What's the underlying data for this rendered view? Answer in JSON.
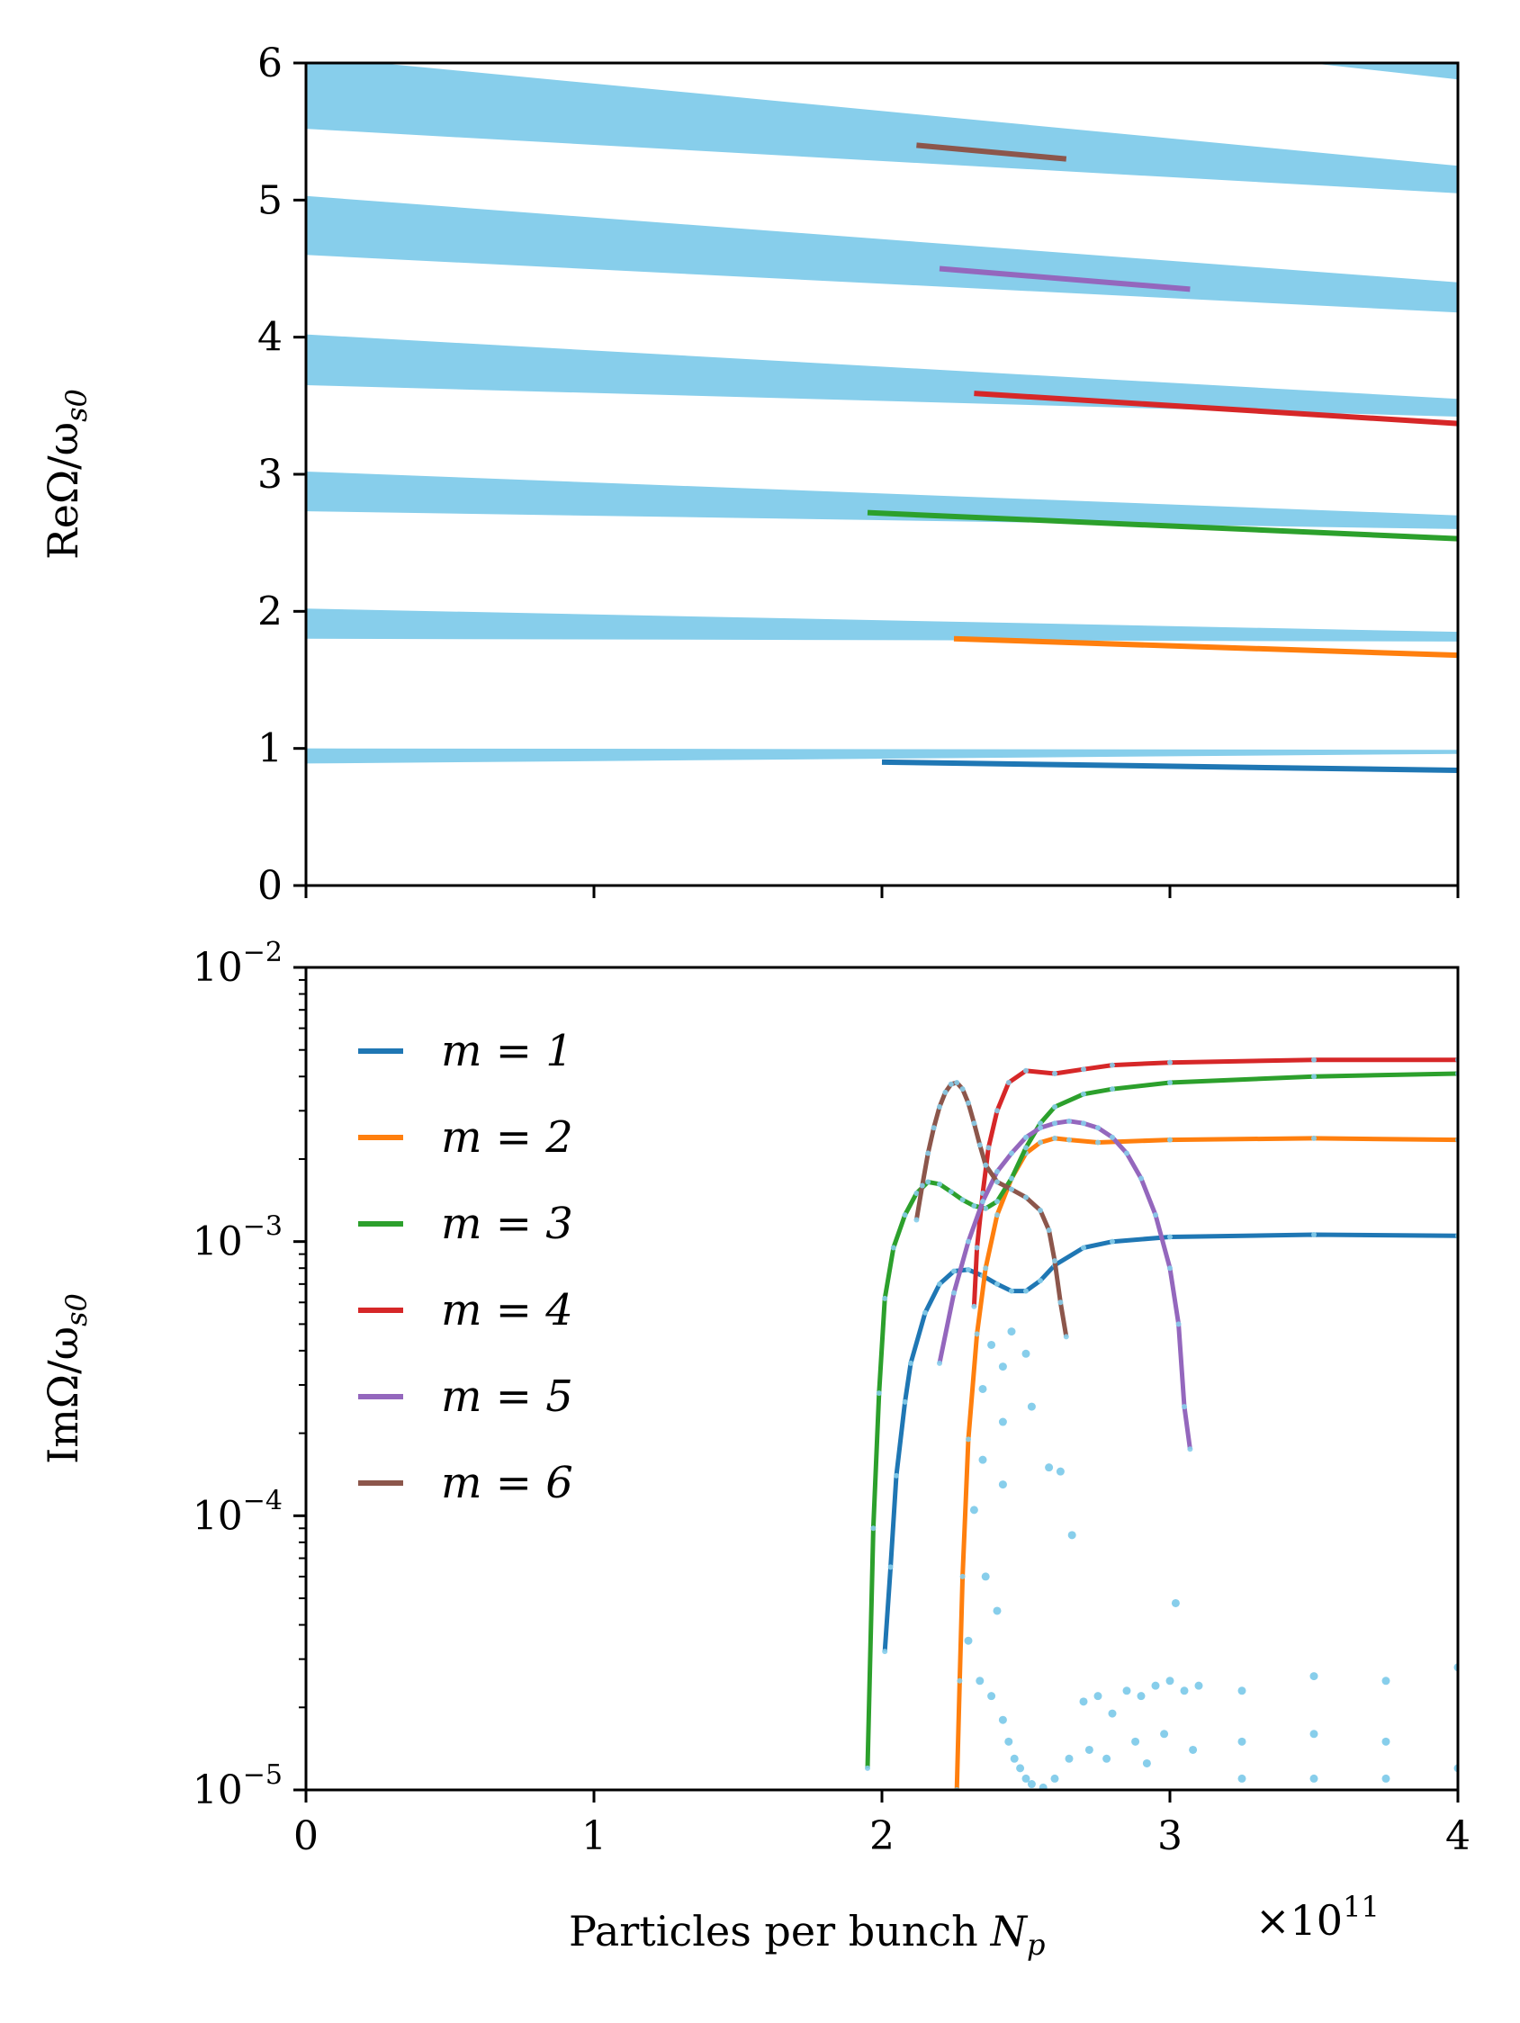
{
  "chart_data": [
    {
      "id": "top",
      "type": "line",
      "ylabel": "ReΩ/ω",
      "ylabel_sub": "s0",
      "xlim": [
        0,
        4
      ],
      "ylim": [
        0,
        6
      ],
      "x_ticks": [
        0,
        1,
        2,
        3,
        4
      ],
      "y_ticks": [
        {
          "value": 0,
          "label": "0"
        },
        {
          "value": 1,
          "label": "1"
        },
        {
          "value": 2,
          "label": "2"
        },
        {
          "value": 3,
          "label": "3"
        },
        {
          "value": 4,
          "label": "4"
        },
        {
          "value": 5,
          "label": "5"
        },
        {
          "value": 6,
          "label": "6"
        }
      ],
      "bands": [
        {
          "x": [
            0,
            4
          ],
          "lower": [
            0.89,
            0.96
          ],
          "upper": [
            1.0,
            0.99
          ]
        },
        {
          "x": [
            0,
            4
          ],
          "lower": [
            1.8,
            1.78
          ],
          "upper": [
            2.02,
            1.85
          ]
        },
        {
          "x": [
            0,
            4
          ],
          "lower": [
            2.73,
            2.6
          ],
          "upper": [
            3.02,
            2.7
          ]
        },
        {
          "x": [
            0,
            4
          ],
          "lower": [
            3.65,
            3.42
          ],
          "upper": [
            4.02,
            3.55
          ]
        },
        {
          "x": [
            0,
            4
          ],
          "lower": [
            4.6,
            4.18
          ],
          "upper": [
            5.03,
            4.4
          ]
        },
        {
          "x": [
            0,
            4
          ],
          "lower": [
            5.52,
            5.05
          ],
          "upper": [
            6.05,
            5.25
          ]
        },
        {
          "x": [
            3.4,
            4
          ],
          "lower": [
            6.02,
            5.88
          ],
          "upper": [
            6.2,
            6.1
          ]
        }
      ],
      "series": [
        {
          "name": "m = 1",
          "x": [
            2.0,
            4.0
          ],
          "y": [
            0.9,
            0.84
          ]
        },
        {
          "name": "m = 2",
          "x": [
            2.25,
            4.0
          ],
          "y": [
            1.8,
            1.68
          ]
        },
        {
          "name": "m = 3",
          "x": [
            1.95,
            4.0
          ],
          "y": [
            2.72,
            2.53
          ]
        },
        {
          "name": "m = 4",
          "x": [
            2.32,
            4.0
          ],
          "y": [
            3.59,
            3.37
          ]
        },
        {
          "name": "m = 5",
          "x": [
            2.2,
            3.07
          ],
          "y": [
            4.5,
            4.35
          ]
        },
        {
          "name": "m = 6",
          "x": [
            2.12,
            2.64
          ],
          "y": [
            5.4,
            5.3
          ]
        }
      ]
    },
    {
      "id": "bottom",
      "type": "line",
      "yscale": "log",
      "xlabel": "Particles per bunch",
      "xlabel_var": "N",
      "xlabel_sub": "p",
      "x_multiplier": "×10",
      "x_multiplier_exp": "11",
      "ylabel": "ImΩ/ω",
      "ylabel_sub": "s0",
      "xlim": [
        0,
        4
      ],
      "ylim": [
        1e-05,
        0.01
      ],
      "x_ticks": [
        {
          "value": 0,
          "label": "0"
        },
        {
          "value": 1,
          "label": "1"
        },
        {
          "value": 2,
          "label": "2"
        },
        {
          "value": 3,
          "label": "3"
        },
        {
          "value": 4,
          "label": "4"
        }
      ],
      "y_ticks": [
        {
          "value": 1e-05,
          "base": "10",
          "exp": "−5"
        },
        {
          "value": 0.0001,
          "base": "10",
          "exp": "−4"
        },
        {
          "value": 0.001,
          "base": "10",
          "exp": "−3"
        },
        {
          "value": 0.01,
          "base": "10",
          "exp": "−2"
        }
      ],
      "legend": {
        "position": "upper-left",
        "entries": [
          "m = 1",
          "m = 2",
          "m = 3",
          "m = 4",
          "m = 5",
          "m = 6"
        ]
      },
      "series": [
        {
          "name": "m = 1",
          "x": [
            2.01,
            2.03,
            2.05,
            2.08,
            2.1,
            2.15,
            2.2,
            2.25,
            2.3,
            2.35,
            2.4,
            2.45,
            2.5,
            2.55,
            2.6,
            2.7,
            2.8,
            3.0,
            3.5,
            4.0
          ],
          "y": [
            3.2e-05,
            6.5e-05,
            0.00014,
            0.00026,
            0.00036,
            0.00055,
            0.0007,
            0.00078,
            0.00079,
            0.00075,
            0.0007,
            0.00066,
            0.00066,
            0.00072,
            0.00082,
            0.00095,
            0.001,
            0.00104,
            0.00106,
            0.00105
          ]
        },
        {
          "name": "m = 2",
          "x": [
            2.26,
            2.27,
            2.28,
            2.3,
            2.33,
            2.36,
            2.4,
            2.45,
            2.5,
            2.55,
            2.6,
            2.65,
            2.75,
            3.0,
            3.5,
            4.0
          ],
          "y": [
            1e-05,
            2.5e-05,
            6e-05,
            0.00019,
            0.00046,
            0.0008,
            0.00125,
            0.0017,
            0.0021,
            0.0023,
            0.00238,
            0.00235,
            0.0023,
            0.00235,
            0.00238,
            0.00235
          ],
          "clip_start": true
        },
        {
          "name": "m = 3",
          "x": [
            1.95,
            1.97,
            1.99,
            2.01,
            2.04,
            2.08,
            2.12,
            2.16,
            2.2,
            2.24,
            2.28,
            2.32,
            2.36,
            2.4,
            2.45,
            2.5,
            2.55,
            2.6,
            2.7,
            2.8,
            3.0,
            3.5,
            4.0
          ],
          "y": [
            1.2e-05,
            9e-05,
            0.00028,
            0.00062,
            0.00095,
            0.00125,
            0.0015,
            0.00165,
            0.00162,
            0.00152,
            0.00142,
            0.00135,
            0.00132,
            0.0014,
            0.0017,
            0.0022,
            0.0027,
            0.0031,
            0.00345,
            0.0036,
            0.0038,
            0.004,
            0.0041
          ]
        },
        {
          "name": "m = 4",
          "x": [
            2.32,
            2.33,
            2.35,
            2.37,
            2.4,
            2.44,
            2.5,
            2.6,
            2.7,
            2.8,
            3.0,
            3.5,
            4.0
          ],
          "y": [
            0.00058,
            0.00095,
            0.0015,
            0.0022,
            0.003,
            0.0038,
            0.0042,
            0.0041,
            0.00425,
            0.0044,
            0.0045,
            0.0046,
            0.0046
          ]
        },
        {
          "name": "m = 5",
          "x": [
            2.2,
            2.25,
            2.3,
            2.35,
            2.4,
            2.45,
            2.5,
            2.55,
            2.6,
            2.65,
            2.7,
            2.75,
            2.8,
            2.85,
            2.9,
            2.95,
            3.0,
            3.03,
            3.05,
            3.07
          ],
          "y": [
            0.00036,
            0.00065,
            0.001,
            0.0014,
            0.0018,
            0.0021,
            0.0024,
            0.0026,
            0.0027,
            0.00275,
            0.0027,
            0.0026,
            0.0024,
            0.0021,
            0.0017,
            0.00125,
            0.0008,
            0.0005,
            0.00025,
            0.000175
          ]
        },
        {
          "name": "m = 6",
          "x": [
            2.12,
            2.14,
            2.16,
            2.18,
            2.2,
            2.22,
            2.24,
            2.26,
            2.28,
            2.3,
            2.32,
            2.34,
            2.36,
            2.4,
            2.45,
            2.5,
            2.55,
            2.58,
            2.6,
            2.62,
            2.64
          ],
          "y": [
            0.0012,
            0.0016,
            0.0021,
            0.0026,
            0.0031,
            0.0035,
            0.00375,
            0.0038,
            0.0036,
            0.0032,
            0.0027,
            0.00225,
            0.0019,
            0.00165,
            0.00155,
            0.00145,
            0.0013,
            0.0011,
            0.00085,
            0.0006,
            0.00045
          ]
        }
      ],
      "scatter": [
        {
          "x": 2.38,
          "y": 0.00042
        },
        {
          "x": 2.42,
          "y": 0.00035
        },
        {
          "x": 2.45,
          "y": 0.00047
        },
        {
          "x": 2.5,
          "y": 0.00039
        },
        {
          "x": 2.35,
          "y": 0.00029
        },
        {
          "x": 2.42,
          "y": 0.00022
        },
        {
          "x": 2.52,
          "y": 0.00025
        },
        {
          "x": 2.35,
          "y": 0.00016
        },
        {
          "x": 2.42,
          "y": 0.00013
        },
        {
          "x": 2.58,
          "y": 0.00015
        },
        {
          "x": 2.62,
          "y": 0.000145
        },
        {
          "x": 2.66,
          "y": 8.5e-05
        },
        {
          "x": 2.32,
          "y": 0.000105
        },
        {
          "x": 2.36,
          "y": 6e-05
        },
        {
          "x": 2.4,
          "y": 4.5e-05
        },
        {
          "x": 2.3,
          "y": 3.5e-05
        },
        {
          "x": 3.02,
          "y": 4.8e-05
        },
        {
          "x": 2.34,
          "y": 2.5e-05
        },
        {
          "x": 2.38,
          "y": 2.2e-05
        },
        {
          "x": 2.42,
          "y": 1.8e-05
        },
        {
          "x": 2.44,
          "y": 1.5e-05
        },
        {
          "x": 2.46,
          "y": 1.3e-05
        },
        {
          "x": 2.48,
          "y": 1.2e-05
        },
        {
          "x": 2.5,
          "y": 1.1e-05
        },
        {
          "x": 2.52,
          "y": 1.05e-05
        },
        {
          "x": 2.56,
          "y": 1.02e-05
        },
        {
          "x": 2.6,
          "y": 1.1e-05
        },
        {
          "x": 2.65,
          "y": 1.3e-05
        },
        {
          "x": 2.7,
          "y": 2.1e-05
        },
        {
          "x": 2.75,
          "y": 2.2e-05
        },
        {
          "x": 2.8,
          "y": 1.9e-05
        },
        {
          "x": 2.85,
          "y": 2.3e-05
        },
        {
          "x": 2.9,
          "y": 2.2e-05
        },
        {
          "x": 2.95,
          "y": 2.4e-05
        },
        {
          "x": 3.0,
          "y": 2.5e-05
        },
        {
          "x": 3.05,
          "y": 2.3e-05
        },
        {
          "x": 3.1,
          "y": 2.4e-05
        },
        {
          "x": 3.25,
          "y": 2.3e-05
        },
        {
          "x": 3.5,
          "y": 2.6e-05
        },
        {
          "x": 3.75,
          "y": 2.5e-05
        },
        {
          "x": 4.0,
          "y": 2.8e-05
        },
        {
          "x": 2.72,
          "y": 1.4e-05
        },
        {
          "x": 2.78,
          "y": 1.3e-05
        },
        {
          "x": 2.88,
          "y": 1.5e-05
        },
        {
          "x": 2.92,
          "y": 1.25e-05
        },
        {
          "x": 2.98,
          "y": 1.6e-05
        },
        {
          "x": 3.08,
          "y": 1.4e-05
        },
        {
          "x": 3.25,
          "y": 1.5e-05
        },
        {
          "x": 3.5,
          "y": 1.6e-05
        },
        {
          "x": 3.75,
          "y": 1.5e-05
        },
        {
          "x": 3.25,
          "y": 1.1e-05
        },
        {
          "x": 3.5,
          "y": 1.1e-05
        },
        {
          "x": 3.75,
          "y": 1.1e-05
        },
        {
          "x": 4.0,
          "y": 1.2e-05
        }
      ]
    }
  ],
  "colors": {
    "band": "#87ceeb",
    "m1": "#1f77b4",
    "m2": "#ff7f0e",
    "m3": "#2ca02c",
    "m4": "#d62728",
    "m5": "#9467bd",
    "m6": "#8c564b"
  }
}
